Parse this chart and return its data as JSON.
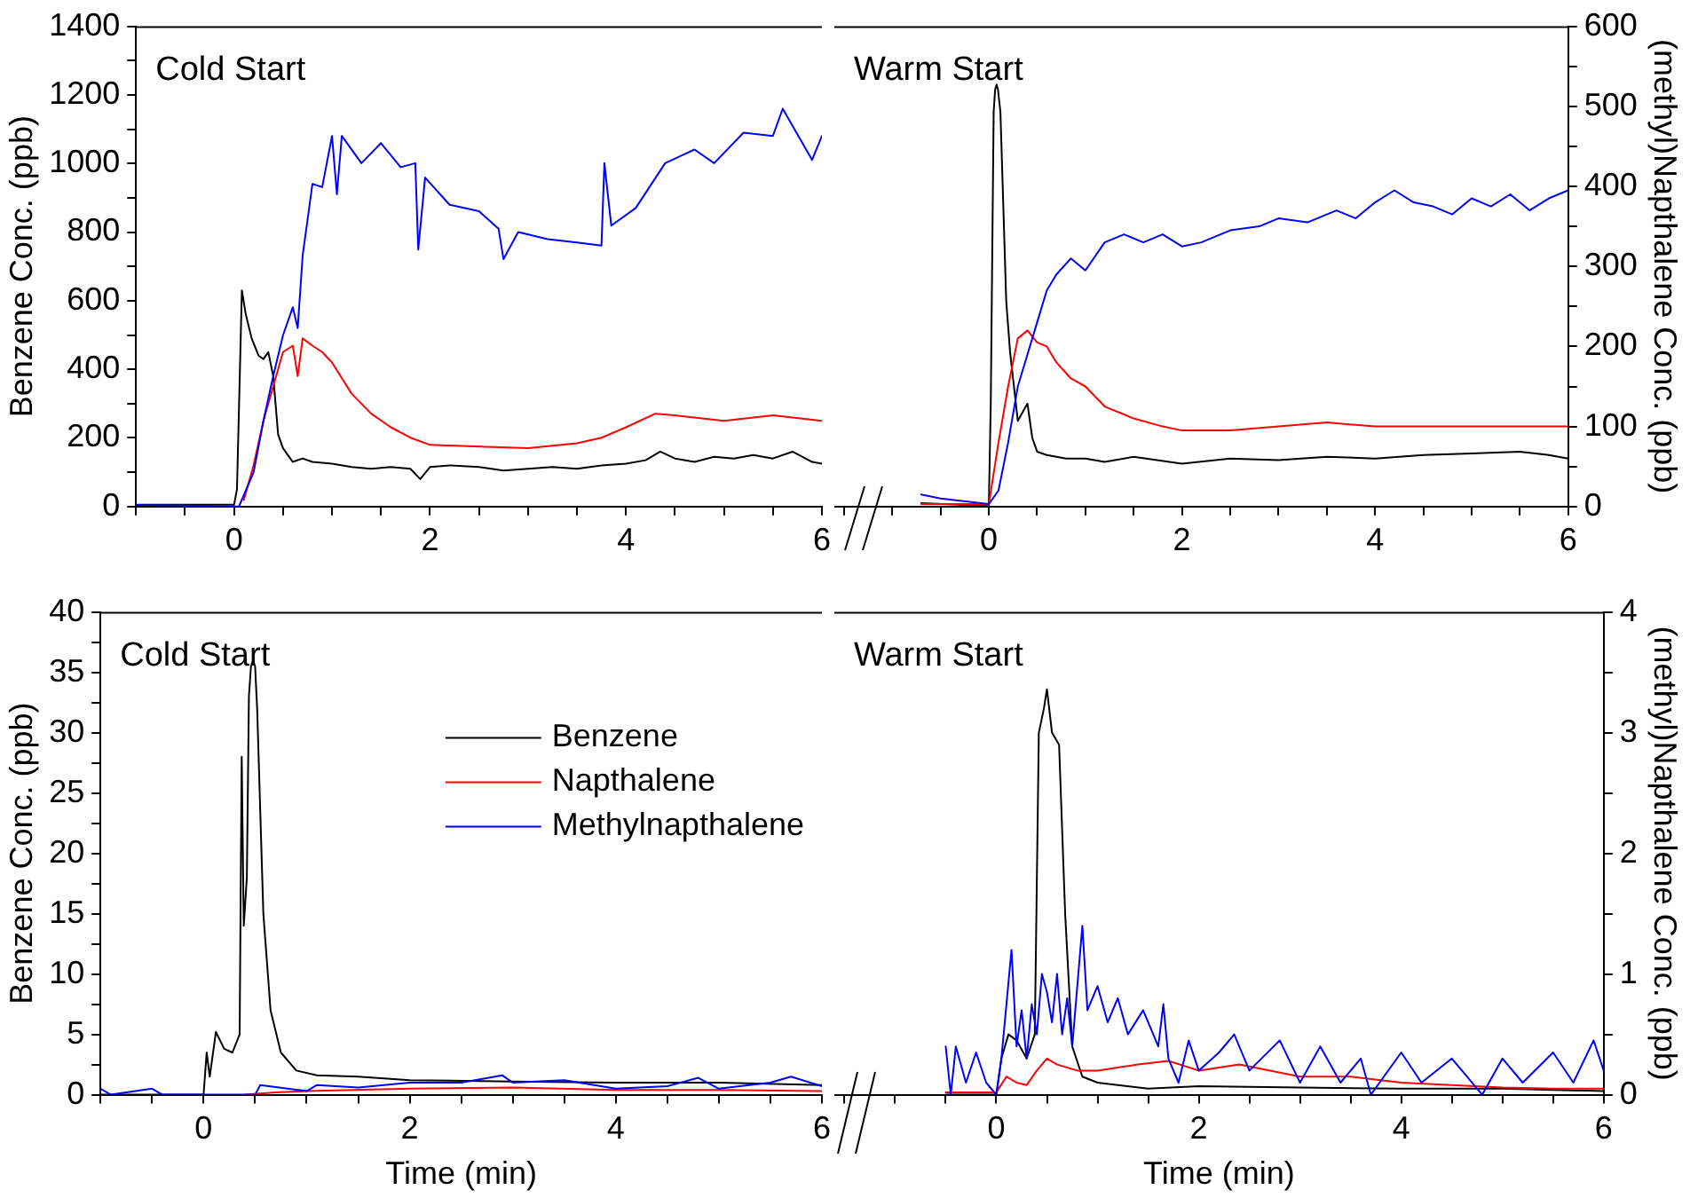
{
  "chart_data": [
    {
      "type": "line",
      "ylabel": "Benzene Conc. (ppb)",
      "annotations": [
        "Cold Start"
      ],
      "tick_labels": "xy",
      "xlim": [
        -1,
        6
      ],
      "xticks": [
        {
          "value": -1,
          "label": null
        },
        {
          "value": -0.5,
          "label": null
        },
        0,
        {
          "value": 0.5,
          "label": null
        },
        {
          "value": 1,
          "label": null
        },
        {
          "value": 1.5,
          "label": null
        },
        2,
        {
          "value": 2.5,
          "label": null
        },
        {
          "value": 3,
          "label": null
        },
        {
          "value": 3.5,
          "label": null
        },
        4,
        {
          "value": 4.5,
          "label": null
        },
        {
          "value": 5,
          "label": null
        },
        {
          "value": 5.5,
          "label": null
        },
        6
      ],
      "ylim": [
        0,
        1400
      ],
      "yticks": [
        0,
        {
          "value": 100,
          "label": null
        },
        200,
        {
          "value": 300,
          "label": null
        },
        400,
        {
          "value": 500,
          "label": null
        },
        600,
        {
          "value": 700,
          "label": null
        },
        800,
        {
          "value": 900,
          "label": null
        },
        1000,
        {
          "value": 1100,
          "label": null
        },
        1200,
        {
          "value": 1300,
          "label": null
        },
        1400
      ],
      "y2lim": [
        0,
        600
      ],
      "grid": false,
      "legend": false,
      "series": [
        {
          "color": "#000000",
          "x": [
            -1,
            -0.5,
            0,
            0.03,
            0.08,
            0.12,
            0.18,
            0.25,
            0.3,
            0.35,
            0.4,
            0.45,
            0.5,
            0.6,
            0.7,
            0.8,
            1,
            1.2,
            1.4,
            1.6,
            1.8,
            1.9,
            2,
            2.2,
            2.5,
            2.75,
            3,
            3.25,
            3.5,
            3.75,
            4,
            4.2,
            4.35,
            4.5,
            4.7,
            4.9,
            5.1,
            5.3,
            5.5,
            5.7,
            5.9,
            6
          ],
          "values": [
            5,
            5,
            5,
            50,
            630,
            560,
            490,
            440,
            430,
            450,
            380,
            210,
            170,
            130,
            140,
            130,
            125,
            115,
            110,
            115,
            110,
            80,
            115,
            120,
            115,
            105,
            110,
            115,
            110,
            120,
            125,
            135,
            160,
            140,
            130,
            145,
            140,
            150,
            140,
            160,
            130,
            125
          ]
        },
        {
          "color": "#ff0000",
          "axis": "y2",
          "x": [
            0.1,
            0.2,
            0.3,
            0.4,
            0.5,
            0.6,
            0.65,
            0.7,
            0.8,
            0.9,
            1,
            1.2,
            1.4,
            1.6,
            1.8,
            2,
            2.5,
            3,
            3.5,
            3.75,
            4,
            4.3,
            4.5,
            5,
            5.5,
            6
          ],
          "values": [
            8,
            52,
            107,
            150,
            193,
            201,
            163,
            210,
            201,
            193,
            180,
            141,
            116,
            99,
            86,
            77,
            75,
            73,
            79,
            86,
            99,
            116,
            114,
            107,
            114,
            107
          ]
        },
        {
          "color": "#0000ff",
          "axis": "y2",
          "x": [
            -1,
            0.05,
            0.2,
            0.3,
            0.4,
            0.5,
            0.6,
            0.65,
            0.7,
            0.8,
            0.9,
            1,
            1.05,
            1.1,
            1.3,
            1.5,
            1.7,
            1.85,
            1.88,
            1.95,
            2.2,
            2.5,
            2.7,
            2.75,
            2.9,
            3.2,
            3.5,
            3.75,
            3.78,
            3.85,
            4.1,
            4.4,
            4.7,
            4.9,
            5.2,
            5.5,
            5.6,
            5.9,
            6
          ],
          "values": [
            2,
            0,
            43,
            107,
            163,
            214,
            249,
            223,
            313,
            403,
            399,
            463,
            390,
            463,
            429,
            454,
            424,
            429,
            321,
            411,
            377,
            369,
            347,
            309,
            343,
            334,
            330,
            326,
            429,
            351,
            373,
            429,
            446,
            429,
            467,
            463,
            497,
            433,
            463
          ]
        }
      ]
    },
    {
      "type": "line",
      "y2label": "(methyl)Napthalene Conc. (ppb)",
      "annotations": [
        "Warm Start"
      ],
      "tick_labels": "xy2",
      "xlim": [
        -1.6,
        6
      ],
      "xticks": [
        {
          "value": -1.5,
          "label": null
        },
        {
          "value": -1,
          "label": null
        },
        {
          "value": -0.5,
          "label": null
        },
        0,
        {
          "value": 0.5,
          "label": null
        },
        {
          "value": 1,
          "label": null
        },
        {
          "value": 1.5,
          "label": null
        },
        2,
        {
          "value": 2.5,
          "label": null
        },
        {
          "value": 3,
          "label": null
        },
        {
          "value": 3.5,
          "label": null
        },
        4,
        {
          "value": 4.5,
          "label": null
        },
        {
          "value": 5,
          "label": null
        },
        {
          "value": 5.5,
          "label": null
        },
        6
      ],
      "ylim": [
        0,
        1400
      ],
      "y2lim": [
        0,
        600
      ],
      "y2ticks": [
        0,
        {
          "value": 50,
          "label": null
        },
        100,
        {
          "value": 150,
          "label": null
        },
        200,
        {
          "value": 250,
          "label": null
        },
        300,
        {
          "value": 350,
          "label": null
        },
        400,
        {
          "value": 450,
          "label": null
        },
        500,
        {
          "value": 550,
          "label": null
        },
        600
      ],
      "grid": false,
      "legend": false,
      "series": [
        {
          "color": "#000000",
          "x": [
            -0.7,
            -0.3,
            0,
            0.02,
            0.05,
            0.065,
            0.08,
            0.095,
            0.12,
            0.18,
            0.22,
            0.3,
            0.4,
            0.45,
            0.5,
            0.6,
            0.8,
            1,
            1.2,
            1.5,
            2,
            2.5,
            3,
            3.5,
            4,
            4.5,
            5,
            5.5,
            5.8,
            6
          ],
          "values": [
            10,
            5,
            5,
            300,
            1150,
            1215,
            1230,
            1215,
            1150,
            600,
            450,
            250,
            300,
            200,
            160,
            150,
            140,
            140,
            130,
            145,
            125,
            140,
            135,
            145,
            140,
            150,
            155,
            160,
            150,
            140
          ]
        },
        {
          "color": "#ff0000",
          "axis": "y2",
          "x": [
            -0.7,
            0,
            0.1,
            0.2,
            0.3,
            0.4,
            0.5,
            0.6,
            0.7,
            0.85,
            1,
            1.2,
            1.5,
            1.8,
            2,
            2.5,
            3,
            3.5,
            4,
            4.5,
            5,
            5.5,
            6
          ],
          "values": [
            3,
            3,
            80,
            150,
            210,
            220,
            205,
            200,
            180,
            160,
            150,
            125,
            110,
            100,
            95,
            95,
            100,
            105,
            100,
            100,
            100,
            100,
            100
          ]
        },
        {
          "color": "#0000ff",
          "axis": "y2",
          "x": [
            -0.7,
            -0.5,
            0,
            0.1,
            0.2,
            0.3,
            0.4,
            0.5,
            0.6,
            0.7,
            0.85,
            1,
            1.2,
            1.4,
            1.6,
            1.8,
            2,
            2.2,
            2.5,
            2.8,
            3,
            3.3,
            3.6,
            3.8,
            4,
            4.2,
            4.4,
            4.6,
            4.8,
            5,
            5.2,
            5.4,
            5.6,
            5.8,
            6
          ],
          "values": [
            15,
            10,
            3,
            20,
            80,
            150,
            190,
            230,
            270,
            290,
            310,
            295,
            330,
            340,
            330,
            340,
            325,
            330,
            345,
            350,
            360,
            355,
            370,
            360,
            380,
            395,
            380,
            375,
            365,
            385,
            375,
            390,
            370,
            385,
            395
          ]
        }
      ]
    },
    {
      "type": "line",
      "xlabel": "Time (min)",
      "ylabel": "Benzene Conc. (ppb)",
      "annotations": [
        "Cold Start"
      ],
      "tick_labels": "xy",
      "xlim": [
        -1,
        6
      ],
      "xticks": [
        {
          "value": -1,
          "label": null
        },
        {
          "value": -0.5,
          "label": null
        },
        0,
        {
          "value": 0.5,
          "label": null
        },
        {
          "value": 1,
          "label": null
        },
        {
          "value": 1.5,
          "label": null
        },
        2,
        {
          "value": 2.5,
          "label": null
        },
        {
          "value": 3,
          "label": null
        },
        {
          "value": 3.5,
          "label": null
        },
        4,
        {
          "value": 4.5,
          "label": null
        },
        {
          "value": 5,
          "label": null
        },
        {
          "value": 5.5,
          "label": null
        },
        6
      ],
      "ylim": [
        0,
        40
      ],
      "yticks": [
        0,
        {
          "value": 2.5,
          "label": null
        },
        5,
        {
          "value": 7.5,
          "label": null
        },
        10,
        {
          "value": 12.5,
          "label": null
        },
        15,
        {
          "value": 17.5,
          "label": null
        },
        20,
        {
          "value": 22.5,
          "label": null
        },
        25,
        {
          "value": 27.5,
          "label": null
        },
        30,
        {
          "value": 32.5,
          "label": null
        },
        35,
        {
          "value": 37.5,
          "label": null
        },
        40
      ],
      "y2lim": [
        0,
        4
      ],
      "grid": false,
      "legend": "top right",
      "series": [
        {
          "name": "Benzene",
          "color": "#000000",
          "x": [
            -1,
            0,
            0.03,
            0.06,
            0.12,
            0.2,
            0.28,
            0.35,
            0.37,
            0.39,
            0.42,
            0.44,
            0.46,
            0.48,
            0.5,
            0.52,
            0.58,
            0.65,
            0.75,
            0.9,
            1.1,
            1.5,
            2,
            3,
            4,
            5,
            6
          ],
          "values": [
            0,
            0,
            3.5,
            1.5,
            5.2,
            3.8,
            3.5,
            5,
            28,
            14,
            18,
            33,
            35.5,
            36,
            35.5,
            32,
            15,
            7,
            3.5,
            2,
            1.6,
            1.5,
            1.2,
            1.1,
            1,
            1,
            0.8
          ]
        },
        {
          "name": "Napthalene",
          "color": "#ff0000",
          "axis": "y2",
          "x": [
            0.4,
            0.7,
            1,
            2,
            3,
            4,
            5,
            6
          ],
          "values": [
            0,
            0.02,
            0.03,
            0.05,
            0.06,
            0.04,
            0.04,
            0.03
          ]
        },
        {
          "name": "Methylnapthalene",
          "color": "#0000ff",
          "axis": "y2",
          "x": [
            -1,
            -0.9,
            -0.5,
            -0.4,
            0.5,
            0.55,
            1,
            1.1,
            1.5,
            2,
            2.5,
            2.9,
            3,
            3.5,
            4,
            4.5,
            4.8,
            5,
            5.5,
            5.7,
            6
          ],
          "values": [
            0.05,
            0,
            0.05,
            0,
            0,
            0.08,
            0.03,
            0.08,
            0.06,
            0.1,
            0.1,
            0.16,
            0.1,
            0.12,
            0.05,
            0.07,
            0.14,
            0.05,
            0.1,
            0.15,
            0.07
          ]
        }
      ]
    },
    {
      "type": "line",
      "xlabel": "Time (min)",
      "y2label": "(methyl)Napthalene Conc. (ppb)",
      "annotations": [
        "Warm Start"
      ],
      "tick_labels": "xy2",
      "xlim": [
        -1.6,
        6
      ],
      "xticks": [
        {
          "value": -1.5,
          "label": null
        },
        {
          "value": -1,
          "label": null
        },
        {
          "value": -0.5,
          "label": null
        },
        0,
        {
          "value": 0.5,
          "label": null
        },
        {
          "value": 1,
          "label": null
        },
        {
          "value": 1.5,
          "label": null
        },
        2,
        {
          "value": 2.5,
          "label": null
        },
        {
          "value": 3,
          "label": null
        },
        {
          "value": 3.5,
          "label": null
        },
        4,
        {
          "value": 4.5,
          "label": null
        },
        {
          "value": 5,
          "label": null
        },
        {
          "value": 5.5,
          "label": null
        },
        6
      ],
      "ylim": [
        0,
        40
      ],
      "y2lim": [
        0,
        4
      ],
      "y2ticks": [
        0,
        {
          "value": 0.5,
          "label": null
        },
        1,
        {
          "value": 1.5,
          "label": null
        },
        2,
        {
          "value": 2.5,
          "label": null
        },
        3,
        {
          "value": 3.5,
          "label": null
        },
        4
      ],
      "grid": false,
      "legend": false,
      "series": [
        {
          "color": "#000000",
          "x": [
            -0.5,
            0,
            0.05,
            0.12,
            0.2,
            0.3,
            0.38,
            0.42,
            0.47,
            0.5,
            0.55,
            0.62,
            0.68,
            0.75,
            0.85,
            1,
            1.5,
            2,
            3,
            4,
            5,
            6
          ],
          "values": [
            0,
            0,
            3,
            5,
            4.5,
            3,
            5,
            30,
            32,
            33.6,
            30,
            29,
            15,
            4,
            1.5,
            1,
            0.5,
            0.7,
            0.6,
            0.5,
            0.5,
            0.3
          ]
        },
        {
          "color": "#ff0000",
          "axis": "y2",
          "x": [
            -0.5,
            0,
            0.1,
            0.2,
            0.3,
            0.4,
            0.5,
            0.6,
            0.8,
            1,
            1.4,
            1.7,
            2,
            2.4,
            3,
            3.5,
            4,
            4.5,
            5,
            5.5,
            6
          ],
          "values": [
            0.02,
            0.02,
            0.15,
            0.1,
            0.08,
            0.2,
            0.3,
            0.25,
            0.2,
            0.2,
            0.25,
            0.28,
            0.2,
            0.25,
            0.15,
            0.15,
            0.1,
            0.08,
            0.06,
            0.05,
            0.05
          ]
        },
        {
          "color": "#0000ff",
          "axis": "y2",
          "x": [
            -0.5,
            -0.45,
            -0.4,
            -0.3,
            -0.2,
            -0.1,
            0,
            0.05,
            0.15,
            0.2,
            0.25,
            0.3,
            0.35,
            0.4,
            0.45,
            0.5,
            0.55,
            0.6,
            0.65,
            0.7,
            0.75,
            0.85,
            0.9,
            1,
            1.1,
            1.2,
            1.3,
            1.45,
            1.6,
            1.65,
            1.7,
            1.8,
            1.9,
            2,
            2.2,
            2.35,
            2.5,
            2.8,
            3,
            3.2,
            3.4,
            3.6,
            3.7,
            4,
            4.2,
            4.5,
            4.8,
            5,
            5.2,
            5.5,
            5.7,
            5.9,
            6
          ],
          "values": [
            0.4,
            0,
            0.4,
            0.1,
            0.35,
            0.1,
            0,
            0.3,
            1.2,
            0.4,
            0.7,
            0.3,
            0.75,
            0.5,
            1,
            0.85,
            0.6,
            1,
            0.5,
            0.8,
            0.4,
            1.4,
            0.7,
            0.9,
            0.6,
            0.8,
            0.5,
            0.7,
            0.4,
            0.75,
            0.3,
            0.1,
            0.45,
            0.2,
            0.35,
            0.5,
            0.2,
            0.45,
            0.1,
            0.4,
            0.1,
            0.3,
            0,
            0.35,
            0.1,
            0.3,
            0,
            0.3,
            0.1,
            0.35,
            0.1,
            0.45,
            0.2
          ]
        }
      ]
    }
  ]
}
